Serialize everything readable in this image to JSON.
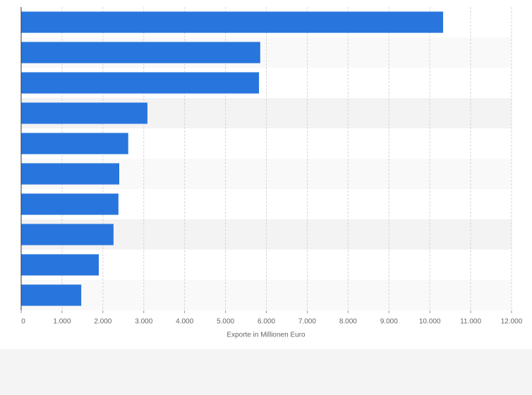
{
  "chart_data": {
    "type": "bar",
    "orientation": "horizontal",
    "x_label": "Exporte in Millionen Euro",
    "categories": [
      null,
      null,
      null,
      null,
      null,
      null,
      null,
      null,
      null,
      null
    ],
    "values": [
      10325,
      5850,
      5820,
      3090,
      2620,
      2400,
      2380,
      2260,
      1900,
      1470
    ],
    "color": "#2876dd",
    "xlim": [
      0,
      12000
    ],
    "xticks": [
      0,
      {
        "value": 1000,
        "label": "1.000"
      },
      {
        "value": 2000,
        "label": "2.000"
      },
      {
        "value": 3000,
        "label": "3.000"
      },
      {
        "value": 4000,
        "label": "4.000"
      },
      {
        "value": 5000,
        "label": "5.000"
      },
      {
        "value": 6000,
        "label": "6.000"
      },
      {
        "value": 7000,
        "label": "7.000"
      },
      {
        "value": 8000,
        "label": "8.000"
      },
      {
        "value": 9000,
        "label": "9.000"
      },
      {
        "value": 10000,
        "label": "10.000"
      },
      {
        "value": 11000,
        "label": "11.000"
      },
      {
        "value": 12000,
        "label": "12.000"
      }
    ],
    "grid": true
  }
}
